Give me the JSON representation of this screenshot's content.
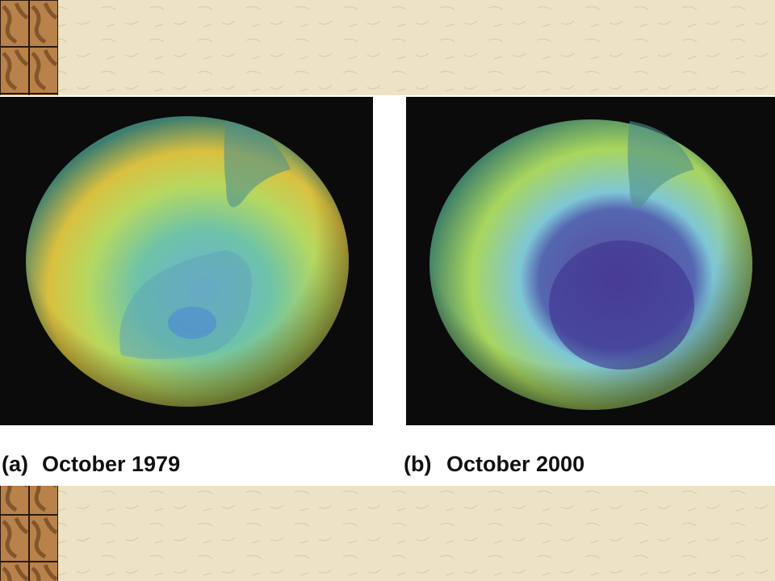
{
  "panels": [
    {
      "tag": "(a)",
      "caption": "October 1979"
    },
    {
      "tag": "(b)",
      "caption": "October 2000"
    }
  ]
}
